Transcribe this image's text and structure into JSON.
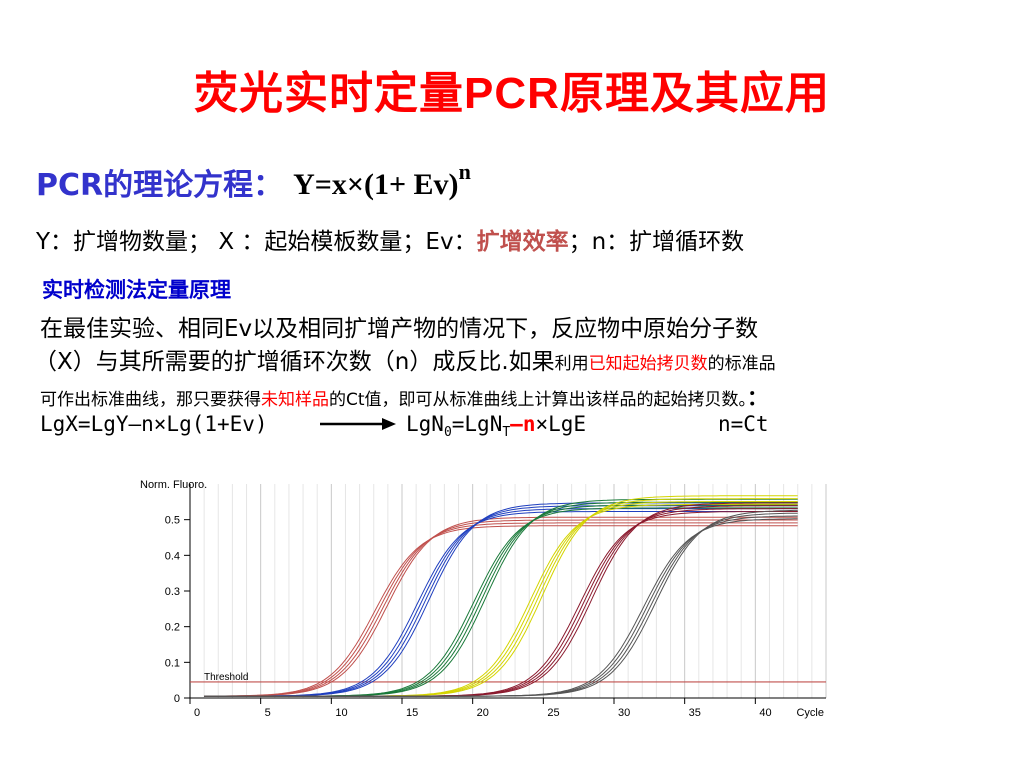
{
  "title": {
    "prefix": "荧光实时定量",
    "latin": "PCR",
    "suffix": "原理及其应用"
  },
  "equation": {
    "label": "PCR的理论方程：",
    "formula": "Y=x×(1+ Ev)",
    "exponent": "n"
  },
  "definitions": {
    "part1": "Y：扩增物数量；  X ：起始模板数量；Ev：",
    "highlight": "扩增效率",
    "part2": "；n：扩增循环数"
  },
  "section": {
    "heading": "实时检测法定量原理",
    "line1": "在最佳实验、相同Ev以及相同扩增产物的情况下，反应物中原始分子数",
    "line2_main": "（X）与其所需要的扩增循环次数（n）成反比.如果",
    "line2_small1": "利用",
    "line2_red": "已知起始拷贝数",
    "line2_small2": "的标准品",
    "line3_a": "可作出标准曲线，那只要获得",
    "line3_red": "未知样品",
    "line3_b": "的Ct值，即可从标准曲线上计算出该样品的起始拷贝数。",
    "line3_colon": "："
  },
  "formulas": {
    "f1": "LgX=LgY–n×Lg(1+Ev)",
    "f2_a": "LgN",
    "f2_sub0": "0",
    "f2_b": "=LgN",
    "f2_subT": "T",
    "f2_c": "–",
    "f2_n": "n",
    "f2_d": "×LgE",
    "f3": "n=Ct"
  },
  "chart_data": {
    "type": "line",
    "ylabel": "Norm. Fluoro.",
    "xlabel": "Cycle",
    "xlim": [
      0,
      45
    ],
    "ylim": [
      0,
      0.6
    ],
    "x_ticks": [
      0,
      5,
      10,
      15,
      20,
      25,
      30,
      35,
      40
    ],
    "y_ticks": [
      0,
      0.1,
      0.2,
      0.3,
      0.4,
      0.5
    ],
    "y_tick_labels": [
      "0",
      "0.1",
      "0.2",
      "0.3",
      "0.4",
      "0.5"
    ],
    "threshold": {
      "label": "Threshold",
      "value": 0.045,
      "color": "#c0504d"
    },
    "grid": true,
    "series": [
      {
        "color": "#c0504d",
        "midpoint": 13.5,
        "plateau": 0.49,
        "replicates": 4
      },
      {
        "color": "#1f3fbf",
        "midpoint": 16.5,
        "plateau": 0.53,
        "replicates": 4
      },
      {
        "color": "#1a7a3a",
        "midpoint": 20.5,
        "plateau": 0.54,
        "replicates": 4
      },
      {
        "color": "#d4d400",
        "midpoint": 24.5,
        "plateau": 0.55,
        "replicates": 4
      },
      {
        "color": "#8b1a2e",
        "midpoint": 28.0,
        "plateau": 0.53,
        "replicates": 4
      },
      {
        "color": "#555555",
        "midpoint": 32.5,
        "plateau": 0.51,
        "replicates": 4
      }
    ]
  }
}
